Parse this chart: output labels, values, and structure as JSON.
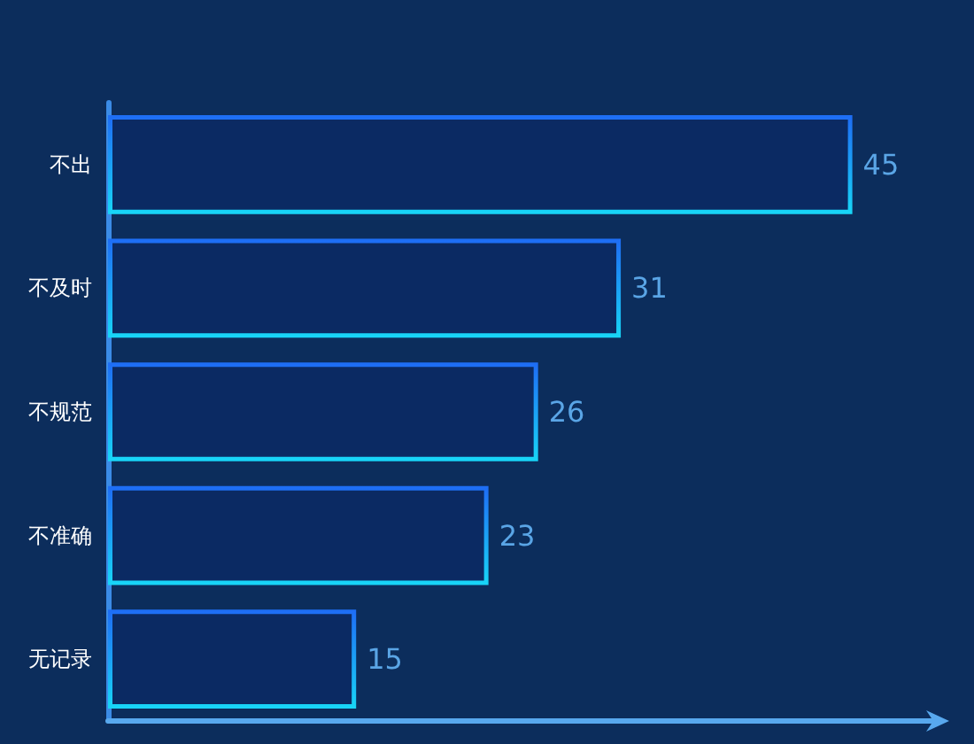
{
  "chart_data": {
    "type": "bar",
    "orientation": "horizontal",
    "categories": [
      "不出",
      "不及时",
      "不规范",
      "不准确",
      "无记录"
    ],
    "values": [
      45,
      31,
      26,
      23,
      15
    ],
    "color": "#1e6ef5",
    "data_labels": true,
    "grid": false,
    "tick_labels": "y"
  }
}
